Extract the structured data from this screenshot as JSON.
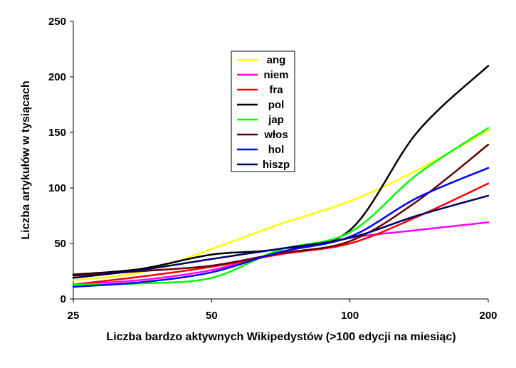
{
  "chart_data": {
    "type": "line",
    "title": "",
    "xlabel": "Liczba bardzo aktywnych Wikipedystów (>100 edycji na miesiąc)",
    "ylabel": "Liczba artykułów w tysiącach",
    "xscale": "log",
    "xlim": [
      25,
      200
    ],
    "ylim": [
      0,
      250
    ],
    "xticks": [
      25,
      50,
      100,
      200
    ],
    "yticks": [
      0,
      50,
      100,
      150,
      200,
      250
    ],
    "legend_placement": "top-center",
    "x": [
      25,
      35,
      50,
      70,
      100,
      140,
      200
    ],
    "series": [
      {
        "name": "ang",
        "color": "#ffff00",
        "values": [
          17,
          24,
          45,
          67,
          88,
          116,
          152
        ]
      },
      {
        "name": "niem",
        "color": "#ff00ff",
        "values": [
          13,
          17,
          26,
          42,
          55,
          62,
          69
        ]
      },
      {
        "name": "fra",
        "color": "#ff0000",
        "values": [
          13,
          20,
          29,
          40,
          50,
          74,
          104
        ]
      },
      {
        "name": "pol",
        "color": "#000000",
        "values": [
          22,
          27,
          40,
          45,
          62,
          150,
          210
        ]
      },
      {
        "name": "jap",
        "color": "#00ff00",
        "values": [
          13,
          14,
          19,
          44,
          60,
          112,
          154
        ]
      },
      {
        "name": "włos",
        "color": "#660000",
        "values": [
          21,
          25,
          30,
          41,
          52,
          88,
          139
        ]
      },
      {
        "name": "hol",
        "color": "#0000ff",
        "values": [
          11,
          15,
          24,
          42,
          56,
          91,
          118
        ]
      },
      {
        "name": "hiszp",
        "color": "#000066",
        "values": [
          19,
          26,
          36,
          45,
          55,
          75,
          93
        ]
      }
    ]
  }
}
